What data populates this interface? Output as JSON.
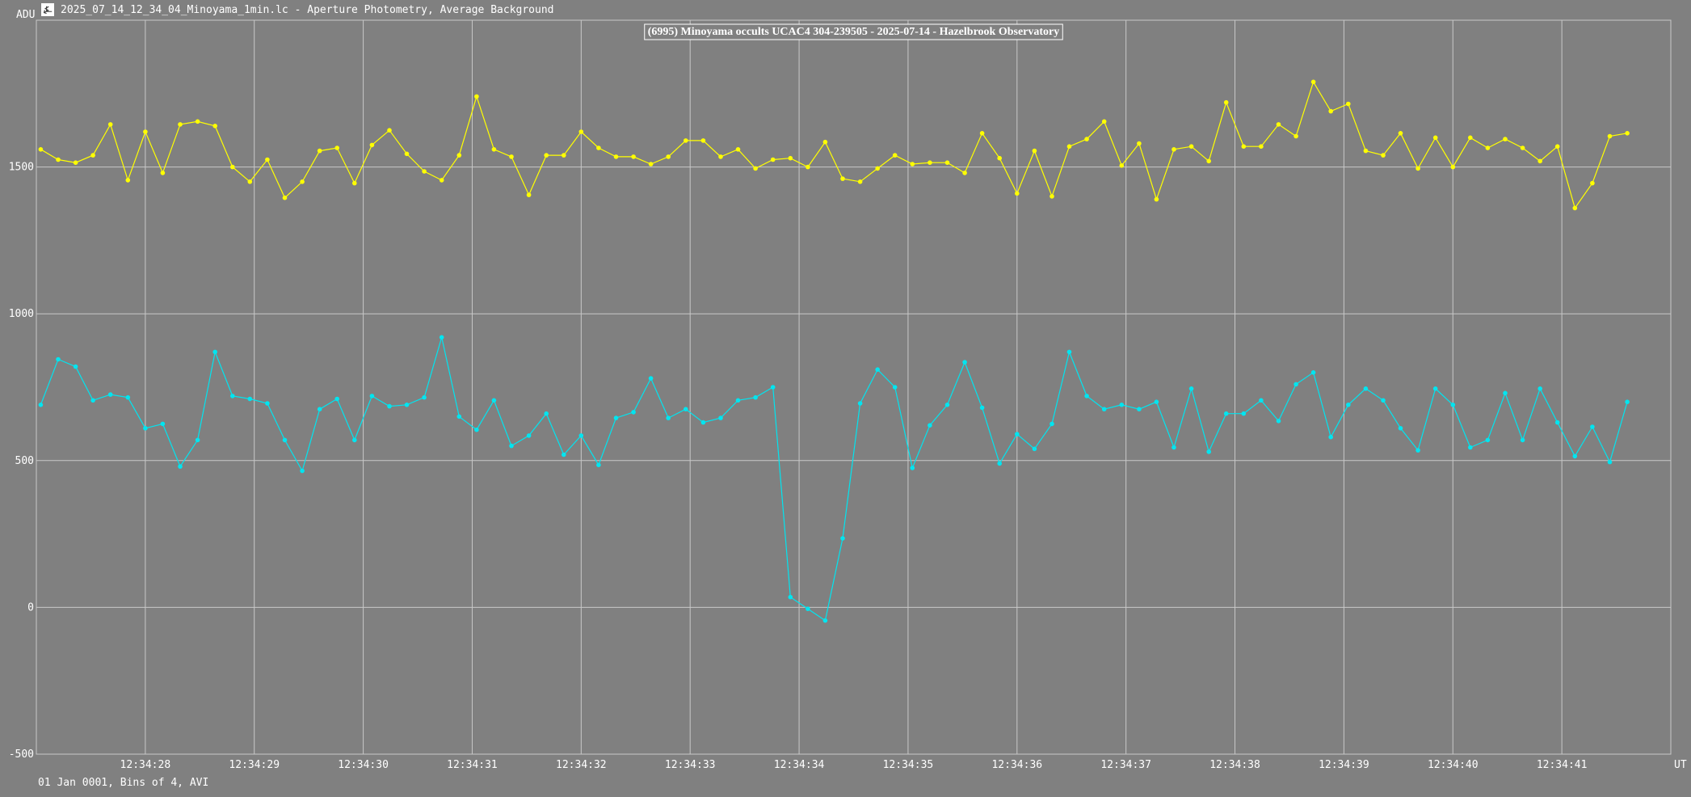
{
  "window": {
    "title": "2025_07_14_12_34_04_Minoyama_1min.lc - Aperture Photometry, Average Background",
    "icon": "lightcurve-app-icon"
  },
  "colors": {
    "background": "#808080",
    "grid": "#c8c8c8",
    "text": "#ffffff",
    "target": "#00e5f0",
    "comparison": "#ffff00"
  },
  "chart_data": {
    "type": "line",
    "title": "(6995) Minoyama occults UCAC4 304-239505 - 2025-07-14 - Hazelbrook Observatory",
    "ylabel": "ADU",
    "xlabel": "UT",
    "footer": "01 Jan 0001, Bins of 4, AVI",
    "ylim": [
      -500,
      2000
    ],
    "yticks": [
      -500,
      0,
      500,
      1000,
      1500
    ],
    "xlim": [
      27.0,
      42.0
    ],
    "xticks": [
      {
        "t": 28,
        "label": "12:34:28"
      },
      {
        "t": 29,
        "label": "12:34:29"
      },
      {
        "t": 30,
        "label": "12:34:30"
      },
      {
        "t": 31,
        "label": "12:34:31"
      },
      {
        "t": 32,
        "label": "12:34:32"
      },
      {
        "t": 33,
        "label": "12:34:33"
      },
      {
        "t": 34,
        "label": "12:34:34"
      },
      {
        "t": 35,
        "label": "12:34:35"
      },
      {
        "t": 36,
        "label": "12:34:36"
      },
      {
        "t": 37,
        "label": "12:34:37"
      },
      {
        "t": 38,
        "label": "12:34:38"
      },
      {
        "t": 39,
        "label": "12:34:39"
      },
      {
        "t": 40,
        "label": "12:34:40"
      },
      {
        "t": 41,
        "label": "12:34:41"
      }
    ],
    "x_start": 27.04,
    "x_step": 0.16,
    "grid": true,
    "series": [
      {
        "key": "comparison",
        "color": "#ffff00",
        "values": [
          1560,
          1525,
          1515,
          1540,
          1645,
          1455,
          1620,
          1480,
          1645,
          1655,
          1640,
          1500,
          1450,
          1525,
          1395,
          1450,
          1555,
          1565,
          1445,
          1575,
          1625,
          1545,
          1485,
          1455,
          1540,
          1740,
          1560,
          1535,
          1405,
          1540,
          1540,
          1620,
          1565,
          1535,
          1535,
          1510,
          1535,
          1590,
          1590,
          1535,
          1560,
          1495,
          1525,
          1530,
          1500,
          1585,
          1460,
          1450,
          1495,
          1540,
          1510,
          1515,
          1515,
          1480,
          1615,
          1530,
          1410,
          1555,
          1400,
          1570,
          1595,
          1655,
          1505,
          1580,
          1390,
          1560,
          1570,
          1520,
          1720,
          1570,
          1570,
          1645,
          1605,
          1790,
          1690,
          1715,
          1555,
          1540,
          1615,
          1495,
          1600,
          1500,
          1600,
          1565,
          1595,
          1565,
          1520,
          1570,
          1360,
          1445,
          1605,
          1615
        ]
      },
      {
        "key": "target",
        "color": "#00e5f0",
        "values": [
          690,
          845,
          820,
          705,
          725,
          715,
          610,
          625,
          480,
          570,
          870,
          720,
          710,
          695,
          570,
          465,
          675,
          710,
          570,
          720,
          685,
          690,
          715,
          920,
          650,
          605,
          705,
          550,
          585,
          660,
          520,
          585,
          485,
          645,
          665,
          780,
          645,
          675,
          630,
          645,
          705,
          715,
          750,
          35,
          -5,
          -45,
          235,
          695,
          810,
          750,
          475,
          620,
          690,
          835,
          680,
          490,
          590,
          540,
          625,
          870,
          720,
          675,
          690,
          675,
          700,
          545,
          745,
          530,
          660,
          660,
          705,
          635,
          760,
          800,
          580,
          690,
          745,
          705,
          610,
          535,
          745,
          690,
          545,
          570,
          730,
          570,
          745,
          630,
          515,
          615,
          495,
          700
        ]
      }
    ]
  }
}
